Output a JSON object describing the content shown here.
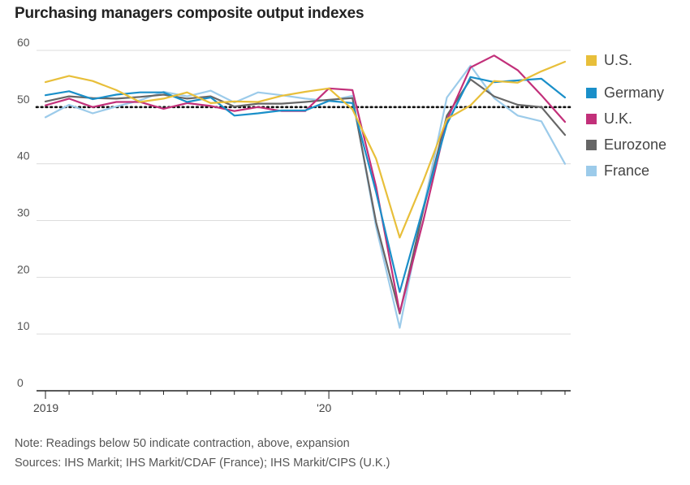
{
  "chart_data": {
    "type": "line",
    "title": "Purchasing managers composite output indexes",
    "xlabel": "",
    "ylabel": "",
    "ylim": [
      0,
      60
    ],
    "yticks": [
      0,
      10,
      20,
      30,
      40,
      50,
      60
    ],
    "x": [
      "2019-01",
      "2019-02",
      "2019-03",
      "2019-04",
      "2019-05",
      "2019-06",
      "2019-07",
      "2019-08",
      "2019-09",
      "2019-10",
      "2019-11",
      "2019-12",
      "2020-01",
      "2020-02",
      "2020-03",
      "2020-04",
      "2020-05",
      "2020-06",
      "2020-07",
      "2020-08",
      "2020-09",
      "2020-10",
      "2020-11"
    ],
    "xtick_labels": [
      {
        "x": "2019-01",
        "label": "2019"
      },
      {
        "x": "2020-01",
        "label": "'20"
      }
    ],
    "reference_line": 50,
    "grid": true,
    "legend_position": "right",
    "series": [
      {
        "name": "U.S.",
        "color": "#e8bf3a",
        "values": [
          54.4,
          55.5,
          54.6,
          53.0,
          50.9,
          51.5,
          52.6,
          50.7,
          51.0,
          50.9,
          52.0,
          52.7,
          53.3,
          49.6,
          40.9,
          27.0,
          37.0,
          47.9,
          50.3,
          54.6,
          54.3,
          56.3,
          58.0
        ]
      },
      {
        "name": "Germany",
        "color": "#1a8fc9",
        "values": [
          52.1,
          52.8,
          51.4,
          52.2,
          52.6,
          52.6,
          50.9,
          51.7,
          48.5,
          48.9,
          49.4,
          49.4,
          51.1,
          50.7,
          35.0,
          17.4,
          32.3,
          47.0,
          55.3,
          54.4,
          54.7,
          55.0,
          51.7
        ]
      },
      {
        "name": "U.K.",
        "color": "#c2307a",
        "values": [
          50.3,
          51.5,
          50.0,
          50.9,
          50.9,
          49.7,
          50.7,
          50.2,
          49.3,
          50.0,
          49.3,
          49.3,
          53.3,
          53.0,
          36.0,
          13.8,
          30.0,
          47.7,
          57.0,
          59.1,
          56.5,
          52.1,
          47.4
        ]
      },
      {
        "name": "Eurozone",
        "color": "#666666",
        "values": [
          51.0,
          51.9,
          51.6,
          51.5,
          51.8,
          52.2,
          51.5,
          51.9,
          50.1,
          50.6,
          50.6,
          50.9,
          51.3,
          51.6,
          29.7,
          13.6,
          31.9,
          48.5,
          54.9,
          51.9,
          50.4,
          50.0,
          45.1
        ]
      },
      {
        "name": "France",
        "color": "#9ccbea",
        "values": [
          48.2,
          50.4,
          48.9,
          50.1,
          51.2,
          52.7,
          51.9,
          52.9,
          50.8,
          52.6,
          52.1,
          51.5,
          51.1,
          52.0,
          28.9,
          11.1,
          32.1,
          51.7,
          57.3,
          51.6,
          48.5,
          47.5,
          40.0
        ]
      }
    ]
  },
  "notes": {
    "line1": "Note: Readings below 50 indicate contraction, above, expansion",
    "line2": "Sources: IHS Markit; IHS Markit/CDAF (France); IHS Markit/CIPS (U.K.)"
  }
}
